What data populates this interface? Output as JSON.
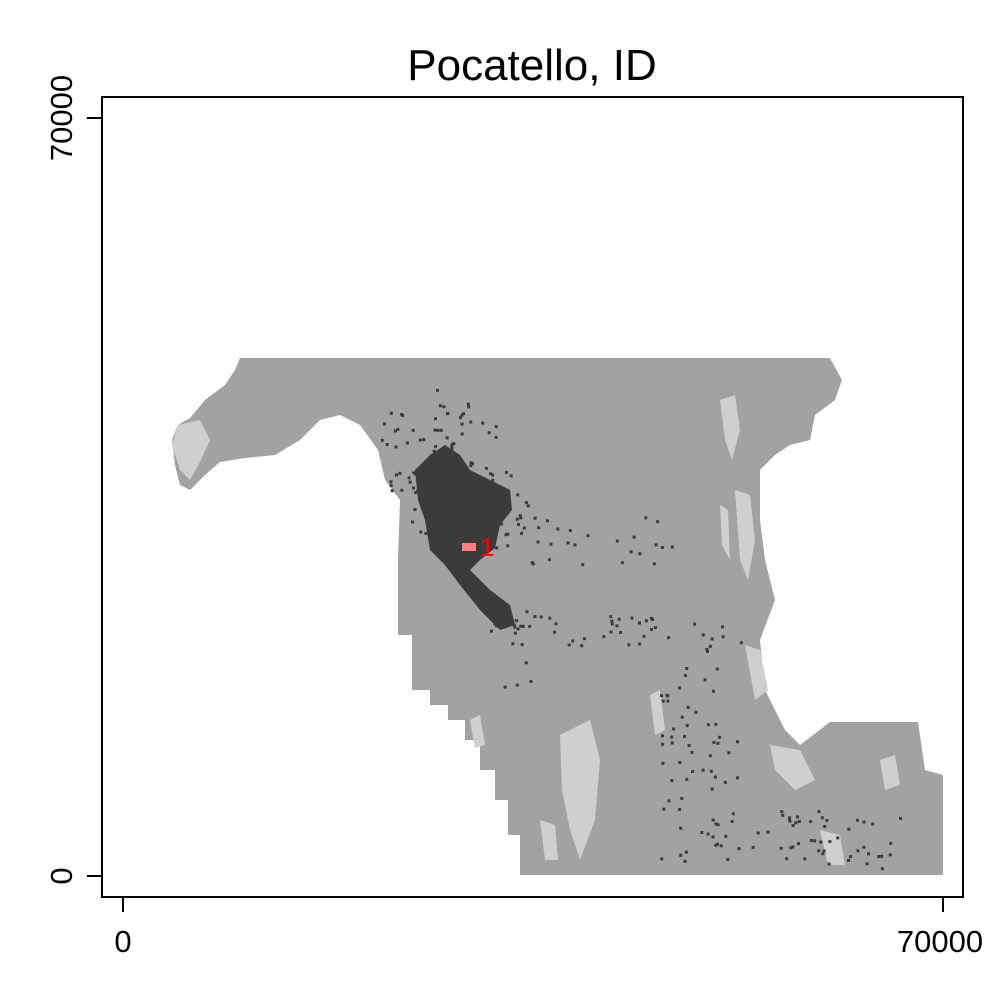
{
  "title": "Pocatello, ID",
  "x_axis": {
    "ticks": [
      "0",
      "70000"
    ]
  },
  "y_axis": {
    "ticks": [
      "0",
      "70000"
    ]
  },
  "colors": {
    "background": "#ffffff",
    "land": "#a2a2a2",
    "light_patch": "#cfcfcf",
    "urban": "#3b3b3b",
    "highlight": "#ff7f7f",
    "label": "#ff0000"
  },
  "map": {
    "highlight_label": "1"
  }
}
